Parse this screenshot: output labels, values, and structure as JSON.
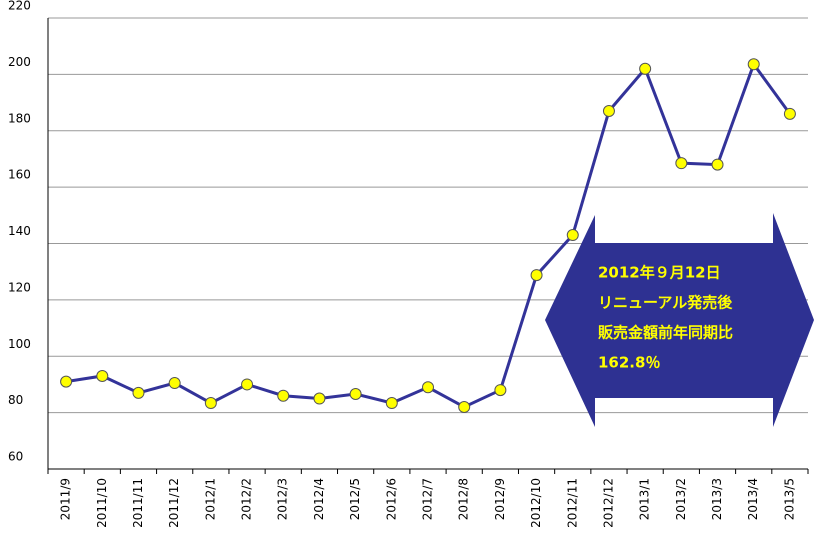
{
  "chart_data": {
    "type": "line",
    "categories": [
      "2011/9",
      "2011/10",
      "2011/11",
      "2011/12",
      "2012/1",
      "2012/2",
      "2012/3",
      "2012/4",
      "2012/5",
      "2012/6",
      "2012/7",
      "2012/8",
      "2012/9",
      "2012/10",
      "2012/11",
      "2012/12",
      "2013/1",
      "2013/2",
      "2013/3",
      "2013/4",
      "2013/5"
    ],
    "series": [
      {
        "color": "#333399",
        "marker_color": "#ffff00",
        "values": [
          91,
          93,
          87,
          90.5,
          83.4,
          90,
          86,
          85,
          86.6,
          83.4,
          89,
          82,
          88,
          128.8,
          143,
          187,
          202,
          168.5,
          168,
          203.6,
          186
        ]
      }
    ],
    "ylim": [
      60,
      220
    ],
    "yticks": [
      60,
      80,
      100,
      120,
      140,
      160,
      180,
      200,
      220
    ],
    "grid": true,
    "annotation": {
      "color": "#2e3192",
      "lines": [
        "2012年９月12日",
        "リニューアル発売後",
        "販売金額前年同期比",
        "162.8％"
      ]
    }
  }
}
